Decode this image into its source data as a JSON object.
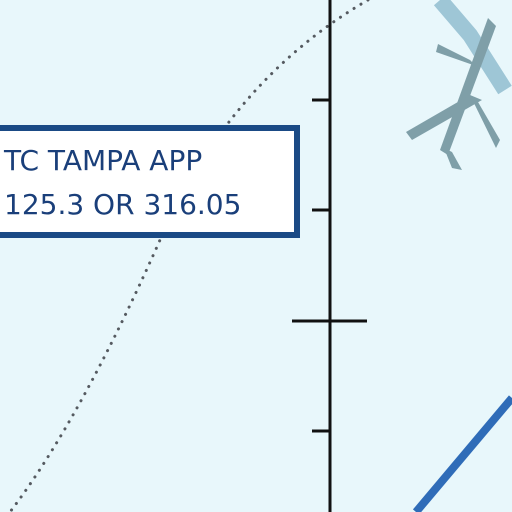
{
  "map": {
    "frequency_box": {
      "line1": "TC TAMPA APP",
      "line2": "125.3 OR 316.05"
    },
    "colors": {
      "background": "#e8f7fb",
      "box_border": "#1a4a85",
      "box_fill": "#ffffff",
      "text": "#1a3f7a",
      "dotted_boundary": "#555a60",
      "scale_line": "#111111",
      "route_line": "#2f6cb8",
      "aircraft_symbol": "#7f9fa8",
      "aircraft_track": "#9ec6d6"
    },
    "icons": [
      "airport-aircraft-icon"
    ]
  }
}
